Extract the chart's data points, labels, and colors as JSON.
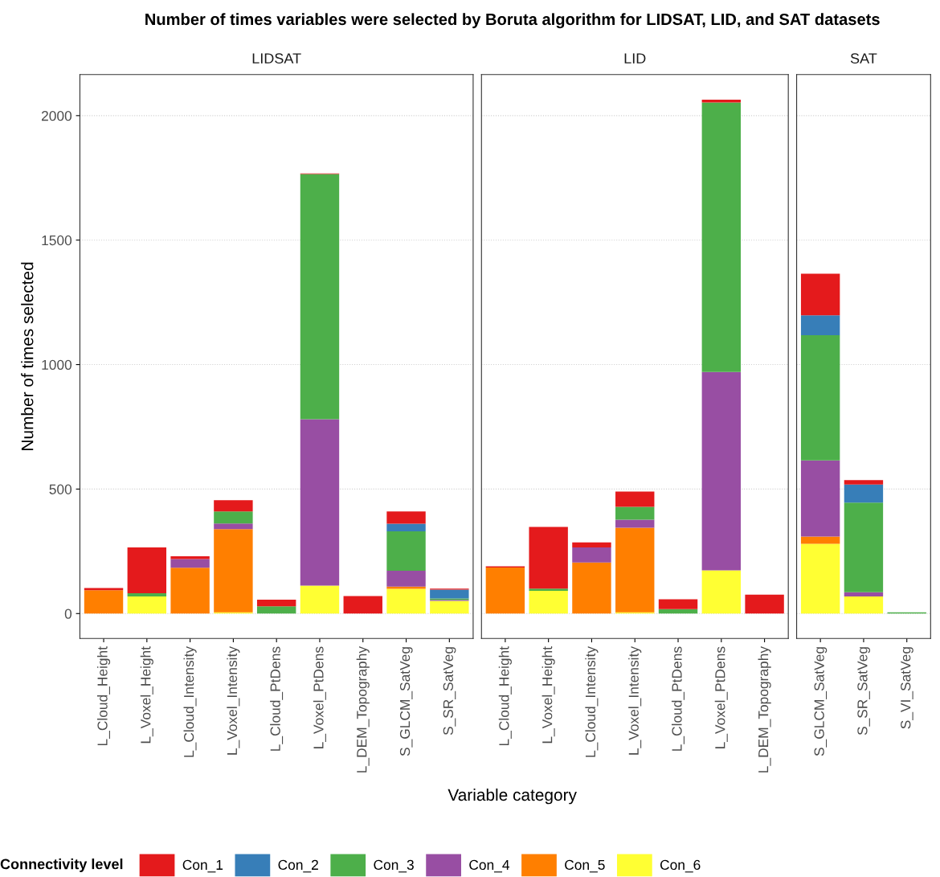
{
  "chart_data": [
    {
      "type": "bar",
      "stacked": true,
      "title": "Number of times variables were selected by Boruta algorithm for LIDSAT, LID, and SAT datasets",
      "subtitle": "LIDSAT",
      "ylabel": "Number of times selected",
      "legend": "bottom",
      "legend_title": "Connectivity level",
      "grid": "y",
      "ylim": [
        -100,
        2165
      ],
      "yticks": [
        0,
        500,
        1000,
        1500,
        2000
      ],
      "categories": [
        "L_Cloud_Height",
        "L_Voxel_Height",
        "L_Cloud_Intensity",
        "L_Voxel_Intensity",
        "L_Cloud_PtDens",
        "L_Voxel_PtDens",
        "L_DEM_Topography",
        "S_GLCM_SatVeg",
        "S_SR_SatVeg"
      ],
      "series": [
        {
          "name": "Con_6",
          "color": "#ffff33",
          "values": [
            0,
            69,
            0,
            5,
            0,
            112,
            0,
            99,
            51
          ]
        },
        {
          "name": "Con_5",
          "color": "#ff7f00",
          "values": [
            94,
            0,
            184,
            334,
            0,
            0,
            0,
            9,
            0
          ]
        },
        {
          "name": "Con_4",
          "color": "#984ea3",
          "values": [
            0,
            0,
            35,
            23,
            0,
            669,
            0,
            64,
            4
          ]
        },
        {
          "name": "Con_3",
          "color": "#4daf4a",
          "values": [
            0,
            13,
            0,
            48,
            29,
            984,
            0,
            158,
            6
          ]
        },
        {
          "name": "Con_2",
          "color": "#377eb8",
          "values": [
            0,
            0,
            0,
            0,
            0,
            0,
            0,
            31,
            35
          ]
        },
        {
          "name": "Con_1",
          "color": "#e41a1c",
          "values": [
            9,
            184,
            11,
            45,
            27,
            3,
            70,
            49,
            4
          ]
        }
      ]
    },
    {
      "type": "bar",
      "stacked": true,
      "subtitle": "LID",
      "xlabel": "Variable category",
      "grid": "y",
      "tick_labels": "x",
      "ylim": [
        -100,
        2165
      ],
      "yticks": [
        0,
        500,
        1000,
        1500,
        2000
      ],
      "categories": [
        "L_Cloud_Height",
        "L_Voxel_Height",
        "L_Cloud_Intensity",
        "L_Voxel_Intensity",
        "L_Cloud_PtDens",
        "L_Voxel_PtDens",
        "L_DEM_Topography"
      ],
      "series": [
        {
          "color": "#ffff33",
          "values": [
            0,
            91,
            0,
            5,
            0,
            174,
            0
          ]
        },
        {
          "color": "#ff7f00",
          "values": [
            185,
            0,
            205,
            340,
            0,
            0,
            0
          ]
        },
        {
          "color": "#984ea3",
          "values": [
            0,
            0,
            61,
            32,
            0,
            796,
            0
          ]
        },
        {
          "color": "#4daf4a",
          "values": [
            0,
            9,
            0,
            52,
            18,
            1083,
            0
          ]
        },
        {
          "color": "#377eb8",
          "values": [
            0,
            0,
            0,
            0,
            0,
            0,
            0
          ]
        },
        {
          "color": "#e41a1c",
          "values": [
            5,
            248,
            20,
            61,
            39,
            11,
            76
          ]
        }
      ]
    },
    {
      "type": "bar",
      "stacked": true,
      "subtitle": "SAT",
      "grid": "y",
      "tick_labels": "x",
      "ylim": [
        -100,
        2165
      ],
      "yticks": [
        0,
        500,
        1000,
        1500,
        2000
      ],
      "categories": [
        "S_GLCM_SatVeg",
        "S_SR_SatVeg",
        "S_VI_SatVeg"
      ],
      "series": [
        {
          "color": "#ffff33",
          "values": [
            280,
            69,
            0
          ]
        },
        {
          "color": "#ff7f00",
          "values": [
            29,
            0,
            0
          ]
        },
        {
          "color": "#984ea3",
          "values": [
            306,
            17,
            0
          ]
        },
        {
          "color": "#4daf4a",
          "values": [
            503,
            360,
            5
          ]
        },
        {
          "color": "#377eb8",
          "values": [
            80,
            72,
            0
          ]
        },
        {
          "color": "#e41a1c",
          "values": [
            167,
            18,
            0
          ]
        }
      ]
    }
  ]
}
